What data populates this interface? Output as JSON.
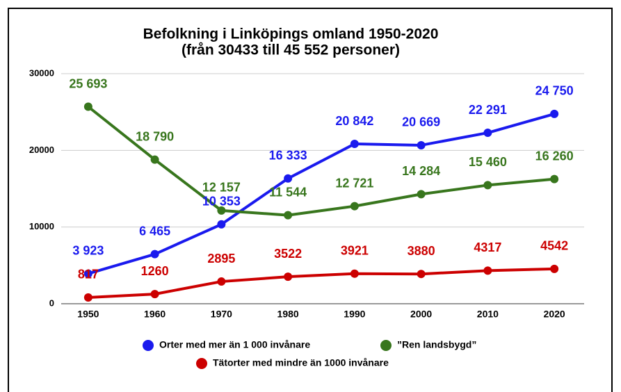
{
  "chart_data": {
    "type": "line",
    "title": "Befolkning i Linköpings omland 1950-2020",
    "subtitle": "(från 30433 till 45 552 personer)",
    "categories": [
      "1950",
      "1960",
      "1970",
      "1980",
      "1990",
      "2000",
      "2010",
      "2020"
    ],
    "series": [
      {
        "name": "Orter med mer än 1 000 invånare",
        "color": "#1a1aee",
        "values": [
          3923,
          6465,
          10353,
          16333,
          20842,
          20669,
          22291,
          24750
        ],
        "value_labels": [
          "3 923",
          "6 465",
          "10 353",
          "16 333",
          "20 842",
          "20 669",
          "22 291",
          "24 750"
        ]
      },
      {
        "name": "”Ren landsbygd”",
        "color": "#38761d",
        "values": [
          25693,
          18790,
          12157,
          11544,
          12721,
          14284,
          15460,
          16260
        ],
        "value_labels": [
          "25 693",
          "18 790",
          "12 157",
          "11 544",
          "12 721",
          "14 284",
          "15 460",
          "16 260"
        ]
      },
      {
        "name": "Tätorter med mindre än 1000 invånare",
        "color": "#cc0000",
        "values": [
          817,
          1260,
          2895,
          3522,
          3921,
          3880,
          4317,
          4542
        ]
      }
    ],
    "ylim": [
      0,
      30000
    ],
    "yticks": [
      0,
      10000,
      20000,
      30000
    ],
    "grid": true
  }
}
